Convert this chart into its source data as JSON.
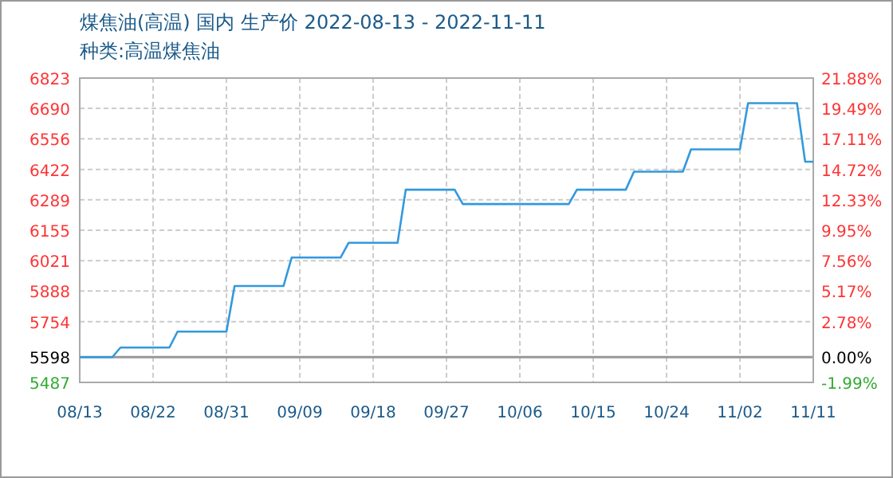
{
  "chart_data": {
    "type": "line",
    "title": "煤焦油(高温) 国内 生产价 2022-08-13 - 2022-11-11",
    "subtitle": "种类:高温煤焦油",
    "x": [
      "2022-08-13",
      "2022-08-17",
      "2022-08-18",
      "2022-08-24",
      "2022-08-25",
      "2022-08-31",
      "2022-09-01",
      "2022-09-07",
      "2022-09-08",
      "2022-09-14",
      "2022-09-15",
      "2022-09-21",
      "2022-09-22",
      "2022-09-28",
      "2022-09-29",
      "2022-10-12",
      "2022-10-13",
      "2022-10-19",
      "2022-10-20",
      "2022-10-26",
      "2022-10-27",
      "2022-11-02",
      "2022-11-03",
      "2022-11-09",
      "2022-11-10",
      "2022-11-11"
    ],
    "series": [
      {
        "color": "#3399dd",
        "values": [
          5598,
          5598,
          5640,
          5640,
          5710,
          5710,
          5910,
          5910,
          6035,
          6035,
          6100,
          6100,
          6333,
          6333,
          6270,
          6270,
          6333,
          6333,
          6412,
          6412,
          6510,
          6510,
          6713,
          6713,
          6456,
          6456
        ]
      }
    ],
    "xlim": [
      "2022-08-13",
      "2022-11-11"
    ],
    "xticks": [
      {
        "value": "2022-08-13",
        "label": "08/13"
      },
      {
        "value": "2022-08-22",
        "label": "08/22"
      },
      {
        "value": "2022-08-31",
        "label": "08/31"
      },
      {
        "value": "2022-09-09",
        "label": "09/09"
      },
      {
        "value": "2022-09-18",
        "label": "09/18"
      },
      {
        "value": "2022-09-27",
        "label": "09/27"
      },
      {
        "value": "2022-10-06",
        "label": "10/06"
      },
      {
        "value": "2022-10-15",
        "label": "10/15"
      },
      {
        "value": "2022-10-24",
        "label": "10/24"
      },
      {
        "value": "2022-11-02",
        "label": "11/02"
      },
      {
        "value": "2022-11-11",
        "label": "11/11"
      }
    ],
    "ylim": [
      5487,
      6823
    ],
    "yticks": [
      5487,
      5598,
      5754,
      5888,
      6021,
      6155,
      6289,
      6422,
      6556,
      6690,
      6823
    ],
    "y2lim": [
      -1.99,
      21.88
    ],
    "y2ticks": [
      {
        "value": -1.99,
        "label": "-1.99%"
      },
      {
        "value": 0,
        "label": "0.00%"
      },
      {
        "value": 2.78,
        "label": "2.78%"
      },
      {
        "value": 5.17,
        "label": "5.17%"
      },
      {
        "value": 7.56,
        "label": "7.56%"
      },
      {
        "value": 9.95,
        "label": "9.95%"
      },
      {
        "value": 12.33,
        "label": "12.33%"
      },
      {
        "value": 14.72,
        "label": "14.72%"
      },
      {
        "value": 17.11,
        "label": "17.11%"
      },
      {
        "value": 19.49,
        "label": "19.49%"
      },
      {
        "value": 21.88,
        "label": "21.88%"
      }
    ],
    "ref_lines": [
      {
        "axis": "y",
        "value": 5598,
        "color": "#999999"
      }
    ],
    "grid": true,
    "line_style": "solid",
    "marker": "none"
  }
}
